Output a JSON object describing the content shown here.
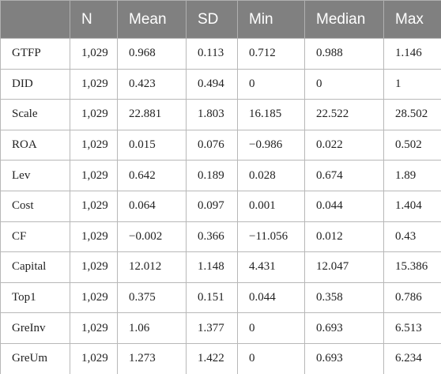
{
  "table": {
    "columns": [
      "N",
      "Mean",
      "SD",
      "Min",
      "Median",
      "Max"
    ],
    "rows": [
      [
        "GTFP",
        "1,029",
        "0.968",
        "0.113",
        "0.712",
        "0.988",
        "1.146"
      ],
      [
        "DID",
        "1,029",
        "0.423",
        "0.494",
        "0",
        "0",
        "1"
      ],
      [
        "Scale",
        "1,029",
        "22.881",
        "1.803",
        "16.185",
        "22.522",
        "28.502"
      ],
      [
        "ROA",
        "1,029",
        "0.015",
        "0.076",
        "−0.986",
        "0.022",
        "0.502"
      ],
      [
        "Lev",
        "1,029",
        "0.642",
        "0.189",
        "0.028",
        "0.674",
        "1.89"
      ],
      [
        "Cost",
        "1,029",
        "0.064",
        "0.097",
        "0.001",
        "0.044",
        "1.404"
      ],
      [
        "CF",
        "1,029",
        "−0.002",
        "0.366",
        "−11.056",
        "0.012",
        "0.43"
      ],
      [
        "Capital",
        "1,029",
        "12.012",
        "1.148",
        "4.431",
        "12.047",
        "15.386"
      ],
      [
        "Top1",
        "1,029",
        "0.375",
        "0.151",
        "0.044",
        "0.358",
        "0.786"
      ],
      [
        "GreInv",
        "1,029",
        "1.06",
        "1.377",
        "0",
        "0.693",
        "6.513"
      ],
      [
        "GreUm",
        "1,029",
        "1.273",
        "1.422",
        "0",
        "0.693",
        "6.234"
      ]
    ]
  }
}
